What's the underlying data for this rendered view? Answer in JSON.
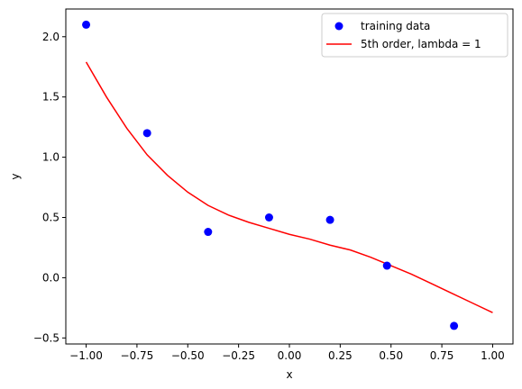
{
  "chart_data": {
    "type": "scatter",
    "xlabel": "x",
    "ylabel": "y",
    "xlim": [
      -1.1,
      1.1
    ],
    "ylim": [
      -0.55,
      2.23
    ],
    "xticks": [
      -1.0,
      -0.75,
      -0.5,
      -0.25,
      0.0,
      0.25,
      0.5,
      0.75,
      1.0
    ],
    "xtick_labels": [
      "−1.00",
      "−0.75",
      "−0.50",
      "−0.25",
      "0.00",
      "0.25",
      "0.50",
      "0.75",
      "1.00"
    ],
    "yticks": [
      -0.5,
      0.0,
      0.5,
      1.0,
      1.5,
      2.0
    ],
    "ytick_labels": [
      "−0.5",
      "0.0",
      "0.5",
      "1.0",
      "1.5",
      "2.0"
    ],
    "grid": false,
    "legend_position": "top-right",
    "series": [
      {
        "name": "training data",
        "kind": "scatter",
        "color": "#0000ff",
        "points": [
          {
            "x": -1.0,
            "y": 2.1
          },
          {
            "x": -0.7,
            "y": 1.2
          },
          {
            "x": -0.4,
            "y": 0.38
          },
          {
            "x": -0.1,
            "y": 0.5
          },
          {
            "x": 0.2,
            "y": 0.48
          },
          {
            "x": 0.48,
            "y": 0.1
          },
          {
            "x": 0.81,
            "y": -0.4
          }
        ]
      },
      {
        "name": "5th order, lambda = 1",
        "kind": "line",
        "color": "#ff0000",
        "points": [
          {
            "x": -1.0,
            "y": 1.79
          },
          {
            "x": -0.9,
            "y": 1.5
          },
          {
            "x": -0.8,
            "y": 1.24
          },
          {
            "x": -0.7,
            "y": 1.02
          },
          {
            "x": -0.6,
            "y": 0.85
          },
          {
            "x": -0.5,
            "y": 0.71
          },
          {
            "x": -0.4,
            "y": 0.6
          },
          {
            "x": -0.3,
            "y": 0.52
          },
          {
            "x": -0.2,
            "y": 0.46
          },
          {
            "x": -0.1,
            "y": 0.41
          },
          {
            "x": 0.0,
            "y": 0.36
          },
          {
            "x": 0.1,
            "y": 0.32
          },
          {
            "x": 0.2,
            "y": 0.27
          },
          {
            "x": 0.3,
            "y": 0.23
          },
          {
            "x": 0.4,
            "y": 0.17
          },
          {
            "x": 0.5,
            "y": 0.1
          },
          {
            "x": 0.6,
            "y": 0.03
          },
          {
            "x": 0.7,
            "y": -0.05
          },
          {
            "x": 0.8,
            "y": -0.13
          },
          {
            "x": 0.9,
            "y": -0.21
          },
          {
            "x": 1.0,
            "y": -0.29
          }
        ]
      }
    ]
  }
}
